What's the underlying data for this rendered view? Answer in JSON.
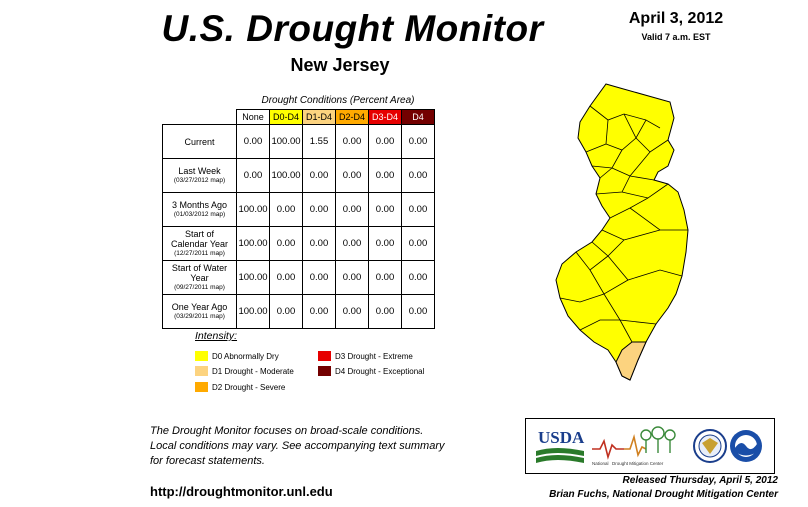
{
  "header": {
    "title": "U.S. Drought Monitor",
    "state": "New Jersey",
    "date": "April 3, 2012",
    "valid": "Valid 7 a.m. EST"
  },
  "table": {
    "caption": "Drought Conditions (Percent Area)",
    "columns": [
      "None",
      "D0-D4",
      "D1-D4",
      "D2-D4",
      "D3-D4",
      "D4"
    ],
    "column_colors": [
      "#ffffff",
      "#ffff00",
      "#fcd37f",
      "#ffaa00",
      "#e60000",
      "#730000"
    ],
    "rows": [
      {
        "label": "Current",
        "sub": "",
        "values": [
          "0.00",
          "100.00",
          "1.55",
          "0.00",
          "0.00",
          "0.00"
        ]
      },
      {
        "label": "Last Week",
        "sub": "(03/27/2012 map)",
        "values": [
          "0.00",
          "100.00",
          "0.00",
          "0.00",
          "0.00",
          "0.00"
        ]
      },
      {
        "label": "3 Months Ago",
        "sub": "(01/03/2012 map)",
        "values": [
          "100.00",
          "0.00",
          "0.00",
          "0.00",
          "0.00",
          "0.00"
        ]
      },
      {
        "label": "Start of Calendar Year",
        "sub": "(12/27/2011 map)",
        "values": [
          "100.00",
          "0.00",
          "0.00",
          "0.00",
          "0.00",
          "0.00"
        ]
      },
      {
        "label": "Start of Water Year",
        "sub": "(09/27/2011 map)",
        "values": [
          "100.00",
          "0.00",
          "0.00",
          "0.00",
          "0.00",
          "0.00"
        ]
      },
      {
        "label": "One Year Ago",
        "sub": "(03/29/2011 map)",
        "values": [
          "100.00",
          "0.00",
          "0.00",
          "0.00",
          "0.00",
          "0.00"
        ]
      }
    ]
  },
  "legend": {
    "title": "Intensity:",
    "items": [
      {
        "label": "D0 Abnormally Dry",
        "color": "#ffff00"
      },
      {
        "label": "D1 Drought - Moderate",
        "color": "#fcd37f"
      },
      {
        "label": "D2 Drought - Severe",
        "color": "#ffaa00"
      },
      {
        "label": "D3 Drought - Extreme",
        "color": "#e60000"
      },
      {
        "label": "D4 Drought - Exceptional",
        "color": "#730000"
      }
    ]
  },
  "footer": {
    "note_line1": "The Drought Monitor focuses on broad-scale conditions.",
    "note_line2": "Local conditions may vary. See accompanying text summary",
    "note_line3": "for forecast statements.",
    "url": "http://droughtmonitor.unl.edu",
    "released": "Released Thursday, April 5, 2012",
    "author": "Brian Fuchs, National Drought Mitigation Center"
  },
  "logos": {
    "usda": "USDA",
    "ndmc_a": "National",
    "ndmc_b": "Drought Mitigation Center"
  },
  "map": {
    "fill_d0": "#ffff00",
    "fill_d1": "#fcd37f",
    "d1_area_percent": 1.55
  }
}
